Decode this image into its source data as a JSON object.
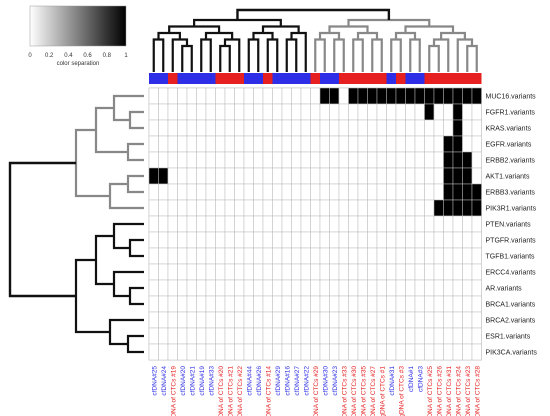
{
  "chart_data": {
    "type": "heatmap",
    "title": "",
    "xlabel": "",
    "ylabel": "",
    "legend": {
      "caption": "color separation",
      "ticks": [
        "0",
        "0.2",
        "0.4",
        "0.6",
        "0.8",
        "1"
      ],
      "range": [
        0,
        1
      ],
      "colors": [
        "#ffffff",
        "#000000"
      ]
    },
    "rows": [
      "MUC16.variants",
      "FGFR1.variants",
      "KRAS.variants",
      "EGFR.variants",
      "ERBB2.variants",
      "AKT1.variants",
      "ERBB3.variants",
      "PIK3R1.variants",
      "PTEN.variants",
      "PTGFR.variants",
      "TGFB1.variants",
      "ERCC4.variants",
      "AR.variants",
      "BRCA1.variants",
      "BRCA2.variants",
      "ESR1.variants",
      "PIK3CA.variants"
    ],
    "columns": [
      "cfDNA#25",
      "cfDNA#24",
      "gDNA of CTCs #19",
      "cfDNA#20",
      "cfDNA#21",
      "cfDNA#19",
      "cfDNA#33",
      "gDNA of CTCs #20",
      "gDNA of CTCs #21",
      "gDNA of CTCs #22",
      "cfDNA#44",
      "cfDNA#26",
      "gDNA of CTCs #14",
      "cfDNA#29",
      "cfDNA#16",
      "cfDNA#27",
      "cfDNA#22",
      "gDNA of CTCs #29",
      "cfDNA#30",
      "cfDNA#23",
      "gDNA of CTCs #33",
      "gDNA of CTCs #30",
      "gDNA of CTCs #35",
      "gDNA of CTCs #27",
      "gDNA of CTCs #1",
      "cfDNA#31",
      "gDNA of CTCs #3",
      "cfDNA#1",
      "cfDNA#3",
      "gDNA of CTCs #25",
      "gDNA of CTCs #26",
      "gDNA of CTCs #31",
      "gDNA of CTCs #24",
      "gDNA of CTCs #23",
      "gDNA of CTCs #28"
    ],
    "column_groups": [
      "cfDNA",
      "cfDNA",
      "gDNA",
      "cfDNA",
      "cfDNA",
      "cfDNA",
      "cfDNA",
      "gDNA",
      "gDNA",
      "gDNA",
      "cfDNA",
      "cfDNA",
      "gDNA",
      "cfDNA",
      "cfDNA",
      "cfDNA",
      "cfDNA",
      "gDNA",
      "cfDNA",
      "cfDNA",
      "gDNA",
      "gDNA",
      "gDNA",
      "gDNA",
      "gDNA",
      "cfDNA",
      "gDNA",
      "cfDNA",
      "cfDNA",
      "gDNA",
      "gDNA",
      "gDNA",
      "gDNA",
      "gDNA",
      "gDNA"
    ],
    "group_colors": {
      "cfDNA": "#2e2ee6",
      "gDNA": "#e62020"
    },
    "values": [
      [
        0,
        0,
        0,
        0,
        0,
        0,
        0,
        0,
        0,
        0,
        0,
        0,
        0,
        0,
        0,
        0,
        0,
        0,
        1,
        1,
        0,
        1,
        1,
        1,
        1,
        1,
        1,
        1,
        1,
        1,
        1,
        1,
        1,
        1,
        1
      ],
      [
        0,
        0,
        0,
        0,
        0,
        0,
        0,
        0,
        0,
        0,
        0,
        0,
        0,
        0,
        0,
        0,
        0,
        0,
        0,
        0,
        0,
        0,
        0,
        0,
        0,
        0,
        0,
        0,
        0,
        1,
        0,
        0,
        1,
        0,
        0
      ],
      [
        0,
        0,
        0,
        0,
        0,
        0,
        0,
        0,
        0,
        0,
        0,
        0,
        0,
        0,
        0,
        0,
        0,
        0,
        0,
        0,
        0,
        0,
        0,
        0,
        0,
        0,
        0,
        0,
        0,
        0,
        0,
        0,
        1,
        0,
        0
      ],
      [
        0,
        0,
        0,
        0,
        0,
        0,
        0,
        0,
        0,
        0,
        0,
        0,
        0,
        0,
        0,
        0,
        0,
        0,
        0,
        0,
        0,
        0,
        0,
        0,
        0,
        0,
        0,
        0,
        0,
        0,
        0,
        1,
        1,
        0,
        0
      ],
      [
        0,
        0,
        0,
        0,
        0,
        0,
        0,
        0,
        0,
        0,
        0,
        0,
        0,
        0,
        0,
        0,
        0,
        0,
        0,
        0,
        0,
        0,
        0,
        0,
        0,
        0,
        0,
        0,
        0,
        0,
        0,
        1,
        1,
        1,
        0
      ],
      [
        1,
        1,
        0,
        0,
        0,
        0,
        0,
        0,
        0,
        0,
        0,
        0,
        0,
        0,
        0,
        0,
        0,
        0,
        0,
        0,
        0,
        0,
        0,
        0,
        0,
        0,
        0,
        0,
        0,
        0,
        0,
        1,
        1,
        1,
        0
      ],
      [
        0,
        0,
        0,
        0,
        0,
        0,
        0,
        0,
        0,
        0,
        0,
        0,
        0,
        0,
        0,
        0,
        0,
        0,
        0,
        0,
        0,
        0,
        0,
        0,
        0,
        0,
        0,
        0,
        0,
        0,
        0,
        1,
        1,
        1,
        1
      ],
      [
        0,
        0,
        0,
        0,
        0,
        0,
        0,
        0,
        0,
        0,
        0,
        0,
        0,
        0,
        0,
        0,
        0,
        0,
        0,
        0,
        0,
        0,
        0,
        0,
        0,
        0,
        0,
        0,
        0,
        0,
        1,
        1,
        1,
        1,
        1
      ],
      [
        0,
        0,
        0,
        0,
        0,
        0,
        0,
        0,
        0,
        0,
        0,
        0,
        0,
        0,
        0,
        0,
        0,
        0,
        0,
        0,
        0,
        0,
        0,
        0,
        0,
        0,
        0,
        0,
        0,
        0,
        0,
        0,
        0,
        0,
        0
      ],
      [
        0,
        0,
        0,
        0,
        0,
        0,
        0,
        0,
        0,
        0,
        0,
        0,
        0,
        0,
        0,
        0,
        0,
        0,
        0,
        0,
        0,
        0,
        0,
        0,
        0,
        0,
        0,
        0,
        0,
        0,
        0,
        0,
        0,
        0,
        0
      ],
      [
        0,
        0,
        0,
        0,
        0,
        0,
        0,
        0,
        0,
        0,
        0,
        0,
        0,
        0,
        0,
        0,
        0,
        0,
        0,
        0,
        0,
        0,
        0,
        0,
        0,
        0,
        0,
        0,
        0,
        0,
        0,
        0,
        0,
        0,
        0
      ],
      [
        0,
        0,
        0,
        0,
        0,
        0,
        0,
        0,
        0,
        0,
        0,
        0,
        0,
        0,
        0,
        0,
        0,
        0,
        0,
        0,
        0,
        0,
        0,
        0,
        0,
        0,
        0,
        0,
        0,
        0,
        0,
        0,
        0,
        0,
        0
      ],
      [
        0,
        0,
        0,
        0,
        0,
        0,
        0,
        0,
        0,
        0,
        0,
        0,
        0,
        0,
        0,
        0,
        0,
        0,
        0,
        0,
        0,
        0,
        0,
        0,
        0,
        0,
        0,
        0,
        0,
        0,
        0,
        0,
        0,
        0,
        0
      ],
      [
        0,
        0,
        0,
        0,
        0,
        0,
        0,
        0,
        0,
        0,
        0,
        0,
        0,
        0,
        0,
        0,
        0,
        0,
        0,
        0,
        0,
        0,
        0,
        0,
        0,
        0,
        0,
        0,
        0,
        0,
        0,
        0,
        0,
        0,
        0
      ],
      [
        0,
        0,
        0,
        0,
        0,
        0,
        0,
        0,
        0,
        0,
        0,
        0,
        0,
        0,
        0,
        0,
        0,
        0,
        0,
        0,
        0,
        0,
        0,
        0,
        0,
        0,
        0,
        0,
        0,
        0,
        0,
        0,
        0,
        0,
        0
      ],
      [
        0,
        0,
        0,
        0,
        0,
        0,
        0,
        0,
        0,
        0,
        0,
        0,
        0,
        0,
        0,
        0,
        0,
        0,
        0,
        0,
        0,
        0,
        0,
        0,
        0,
        0,
        0,
        0,
        0,
        0,
        0,
        0,
        0,
        0,
        0
      ],
      [
        0,
        0,
        0,
        0,
        0,
        0,
        0,
        0,
        0,
        0,
        0,
        0,
        0,
        0,
        0,
        0,
        0,
        0,
        0,
        0,
        0,
        0,
        0,
        0,
        0,
        0,
        0,
        0,
        0,
        0,
        0,
        0,
        0,
        0,
        0
      ]
    ],
    "grid": true
  },
  "colors": {
    "cell_on": "#000000",
    "cell_off": "#ffffff",
    "grid_line": "#bbbbbb",
    "dendro_dark": "#111111",
    "dendro_gray": "#888888"
  }
}
